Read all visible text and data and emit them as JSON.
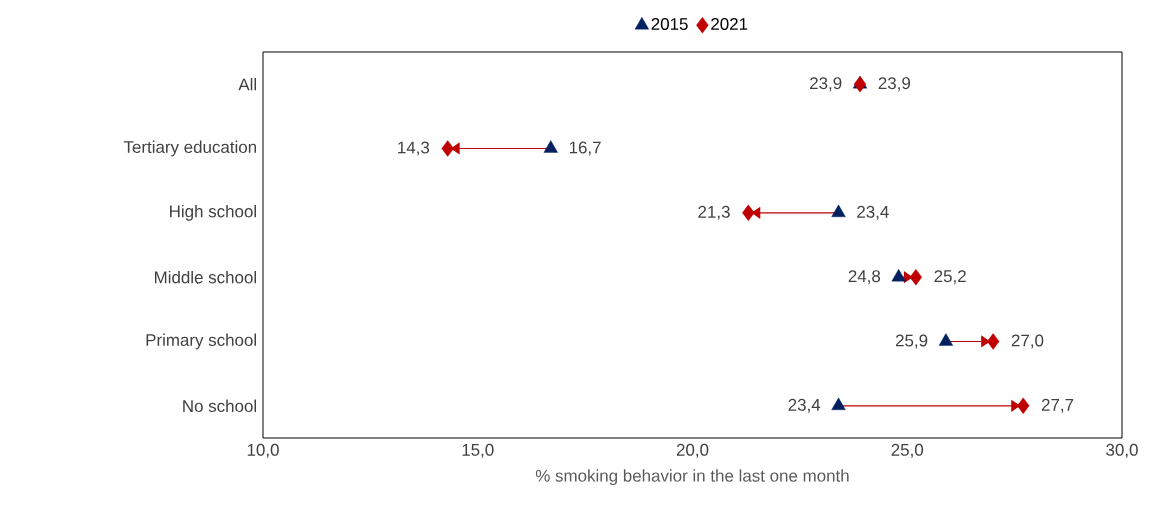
{
  "chart_data": {
    "type": "scatter",
    "orientation": "horizontal",
    "xlabel": "% smoking behavior in the last one month",
    "categories": [
      "All",
      "Tertiary education",
      "High school",
      "Middle school",
      "Primary school",
      "No school"
    ],
    "series": [
      {
        "name": "2015",
        "color": "#002060",
        "marker": "triangle",
        "values": [
          23.9,
          16.7,
          23.4,
          24.8,
          25.9,
          23.4
        ],
        "value_labels": [
          "23,9",
          "16,7",
          "23,4",
          "24,8",
          "25,9",
          "23,4"
        ]
      },
      {
        "name": "2021",
        "color": "#c00000",
        "marker": "diamond",
        "values": [
          23.9,
          14.3,
          21.3,
          25.2,
          27.0,
          27.7
        ],
        "value_labels": [
          "23,9",
          "14,3",
          "21,3",
          "25,2",
          "27,0",
          "27,7"
        ]
      }
    ],
    "xlim": [
      10,
      30
    ],
    "xticks": [
      {
        "value": 10,
        "label": "10,0"
      },
      {
        "value": 15,
        "label": "15,0"
      },
      {
        "value": 20,
        "label": "20,0"
      },
      {
        "value": 25,
        "label": "25,0"
      },
      {
        "value": 30,
        "label": "30,0"
      }
    ],
    "legend": "top",
    "grid": false
  }
}
